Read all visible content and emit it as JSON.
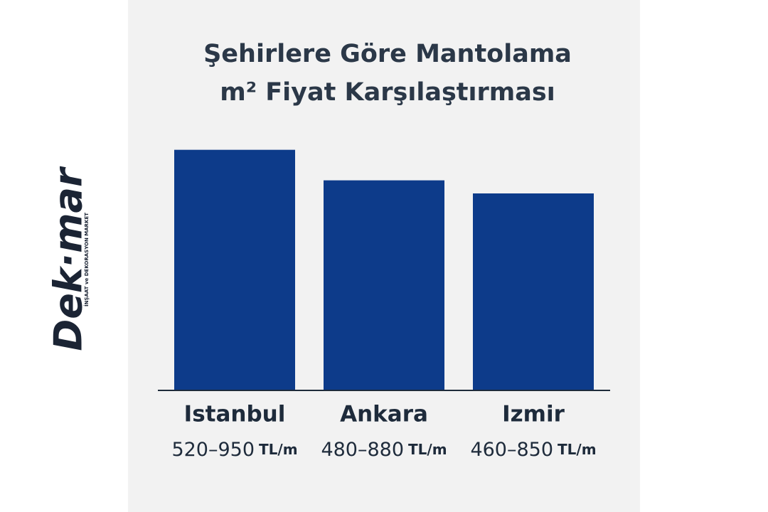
{
  "chart_data": {
    "type": "bar",
    "title_lines": [
      "Şehirlere Göre Mantolama",
      "m² Fiyat Karşılaştırması"
    ],
    "categories": [
      "Istanbul",
      "Ankara",
      "Izmir"
    ],
    "values": [
      950,
      880,
      850
    ],
    "price_ranges": [
      "520–950",
      "480–880",
      "460–850"
    ],
    "unit": "TL/m",
    "color": "#0d3b8a",
    "ylim": [
      400,
      1000
    ]
  },
  "logo": {
    "name": "Dek·mar",
    "tagline": "İNŞAAT ve DEKORASYON MARKET"
  }
}
